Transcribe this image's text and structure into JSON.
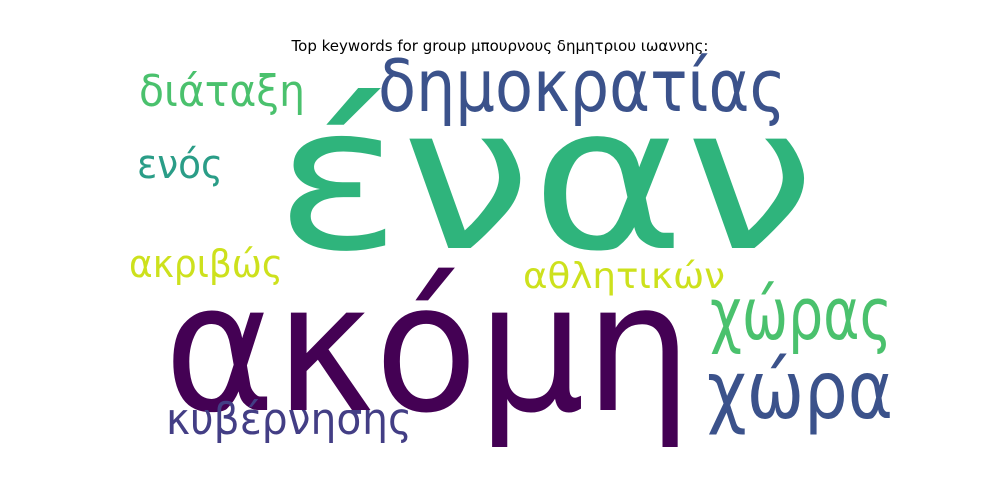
{
  "title": "Top keywords for group μπουρνους δημητριου ιωαννης:",
  "words": [
    {
      "text": "έναν",
      "color": "#2fb47c"
    },
    {
      "text": "ακόμη",
      "color": "#440154"
    },
    {
      "text": "δημοκρατίας",
      "color": "#3b528b"
    },
    {
      "text": "χώρας",
      "color": "#4ac16d"
    },
    {
      "text": "χώρα",
      "color": "#3b528b"
    },
    {
      "text": "διάταξη",
      "color": "#4ac16d"
    },
    {
      "text": "ενός",
      "color": "#2a9d87"
    },
    {
      "text": "ακριβώς",
      "color": "#cde11d"
    },
    {
      "text": "αθλητικών",
      "color": "#cde11d"
    },
    {
      "text": "κυβέρνησης",
      "color": "#433e85"
    }
  ]
}
